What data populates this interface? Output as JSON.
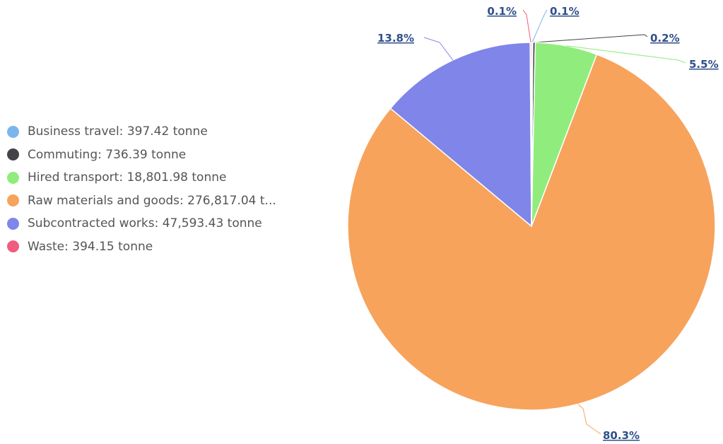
{
  "chart_data": {
    "type": "pie",
    "unit": "tonne",
    "colors": [
      "#7cb5ec",
      "#434348",
      "#90ed7d",
      "#f7a35c",
      "#8085e9",
      "#f15c80"
    ],
    "slices": [
      {
        "name": "Business travel",
        "value": 397.42,
        "percent_label": "0.1%",
        "legend_label": "Business travel: 397.42 tonne"
      },
      {
        "name": "Commuting",
        "value": 736.39,
        "percent_label": "0.2%",
        "legend_label": "Commuting: 736.39 tonne"
      },
      {
        "name": "Hired transport",
        "value": 18801.98,
        "percent_label": "5.5%",
        "legend_label": "Hired transport: 18,801.98 tonne"
      },
      {
        "name": "Raw materials and goods",
        "value": 276817.04,
        "percent_label": "80.3%",
        "legend_label": "Raw materials and goods: 276,817.04 t..."
      },
      {
        "name": "Subcontracted works",
        "value": 47593.43,
        "percent_label": "13.8%",
        "legend_label": "Subcontracted works: 47,593.43 tonne"
      },
      {
        "name": "Waste",
        "value": 394.15,
        "percent_label": "0.1%",
        "legend_label": "Waste: 394.15 tonne"
      }
    ],
    "legend_position": "left"
  }
}
